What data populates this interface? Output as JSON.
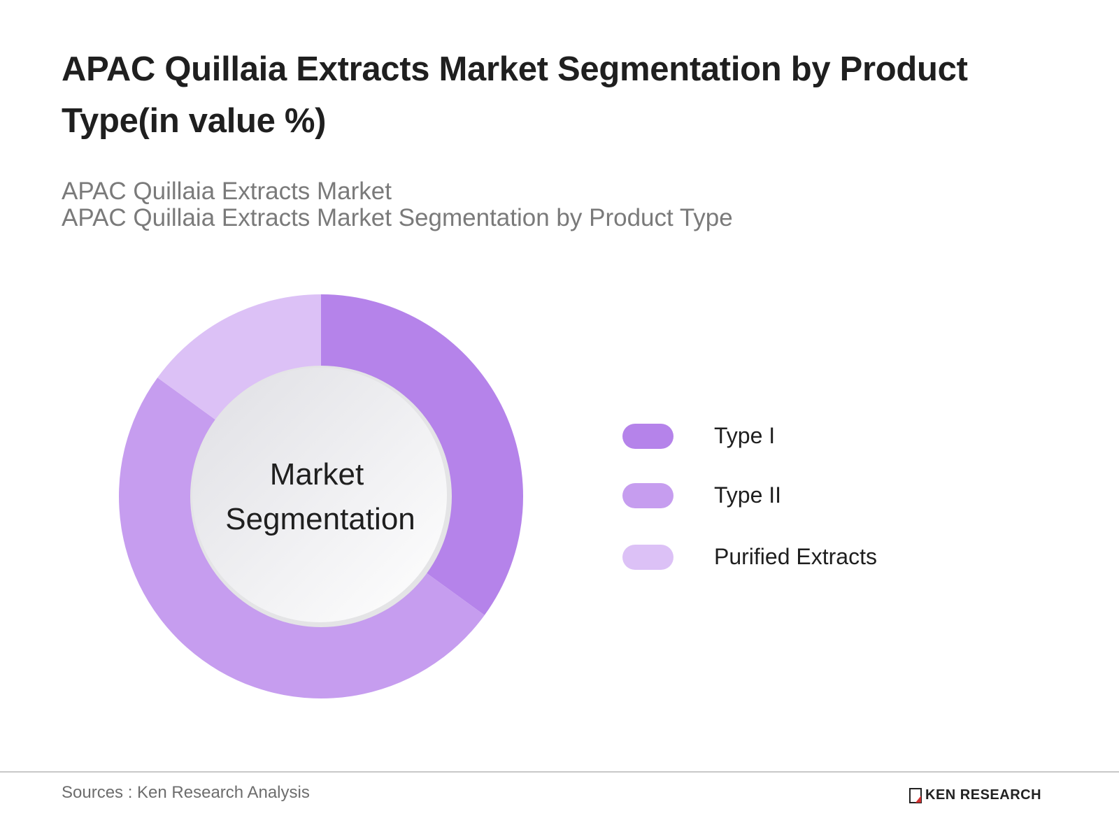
{
  "header": {
    "title": "APAC Quillaia Extracts Market Segmentation by Product Type(in value %)",
    "subtitle_line1": "APAC Quillaia Extracts Market",
    "subtitle_line2": "APAC Quillaia Extracts Market Segmentation by Product Type"
  },
  "chart": {
    "center_label_line1": "Market",
    "center_label_line2": "Segmentation"
  },
  "legend": {
    "items": [
      {
        "label": "Type I",
        "color": "#b583ea"
      },
      {
        "label": "Type II",
        "color": "#c69def"
      },
      {
        "label": "Purified Extracts",
        "color": "#dcc1f6"
      }
    ]
  },
  "footer": {
    "source": "Sources : Ken Research Analysis",
    "logo_text": "KEN RESEARCH"
  },
  "chart_data": {
    "type": "pie",
    "subtype": "donut",
    "title": "APAC Quillaia Extracts Market Segmentation by Product Type(in value %)",
    "subtitle": "APAC Quillaia Extracts Market / APAC Quillaia Extracts Market Segmentation by Product Type",
    "center_text": "Market Segmentation",
    "categories": [
      "Type I",
      "Type II",
      "Purified Extracts"
    ],
    "values": [
      35,
      50,
      15
    ],
    "unit": "%",
    "colors": [
      "#b583ea",
      "#c69def",
      "#dcc1f6"
    ],
    "start_angle": "12 o'clock, clockwise",
    "legend_position": "right",
    "data_labels": false
  }
}
